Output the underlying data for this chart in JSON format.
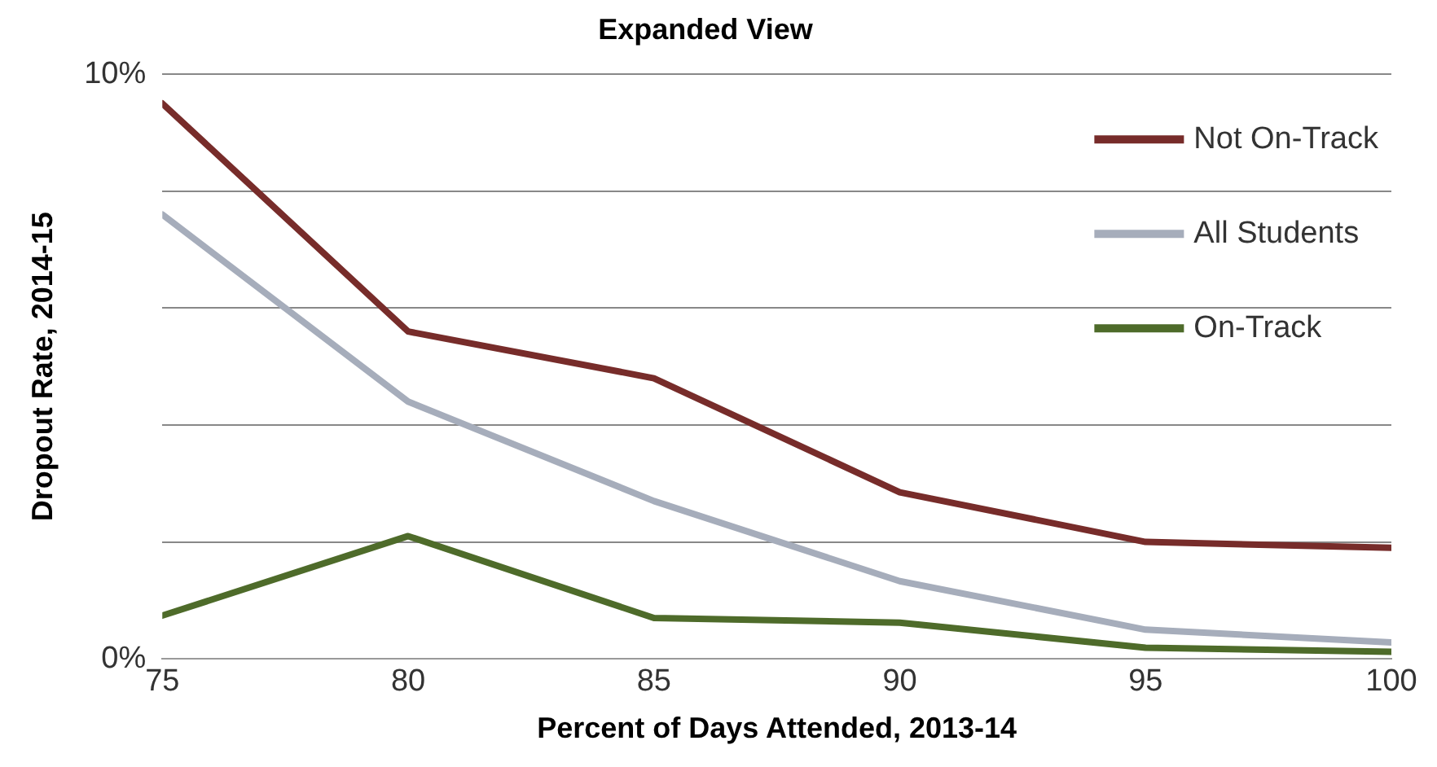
{
  "chart_data": {
    "type": "line",
    "title": "Expanded View",
    "xlabel": "Percent of Days Attended, 2013-14",
    "ylabel": "Dropout Rate, 2014-15",
    "x": [
      75,
      80,
      85,
      90,
      95,
      100
    ],
    "series": [
      {
        "name": "Not On-Track",
        "color": "#772c2a",
        "values": [
          9.5,
          5.6,
          4.8,
          2.85,
          2.0,
          1.9
        ]
      },
      {
        "name": "All Students",
        "color": "#a6adbb",
        "values": [
          7.6,
          4.4,
          2.7,
          1.33,
          0.5,
          0.28
        ]
      },
      {
        "name": "On-Track",
        "color": "#4e6b2a",
        "values": [
          0.74,
          2.1,
          0.7,
          0.62,
          0.19,
          0.12
        ]
      }
    ],
    "xlim": [
      75,
      100
    ],
    "xticks": [
      75,
      80,
      85,
      90,
      95,
      100
    ],
    "ylim": [
      0,
      10
    ],
    "yticks": [
      {
        "value": 0,
        "label": "0%"
      },
      {
        "value": 2,
        "label": null
      },
      {
        "value": 4,
        "label": null
      },
      {
        "value": 6,
        "label": null
      },
      {
        "value": 8,
        "label": null
      },
      {
        "value": 10,
        "label": "10%"
      }
    ],
    "grid": "y",
    "legend": "top right",
    "marker": "none",
    "line_style": "solid"
  }
}
